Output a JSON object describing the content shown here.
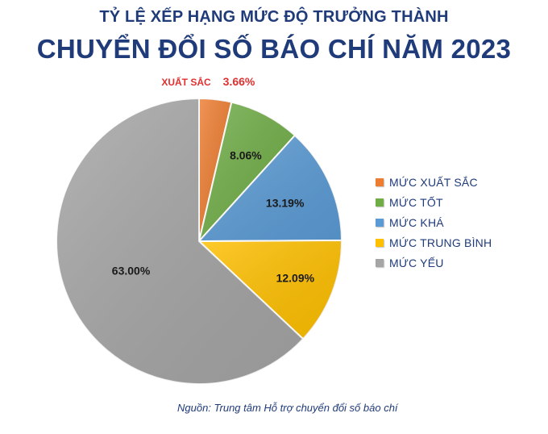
{
  "header": {
    "subtitle": "TỶ LỆ XẾP HẠNG MỨC ĐỘ TRƯỞNG THÀNH",
    "title": "CHUYỂN ĐỔI SỐ BÁO CHÍ NĂM 2023"
  },
  "chart_data": {
    "type": "pie",
    "categories": [
      "MỨC XUẤT SẮC",
      "MỨC TỐT",
      "MỨC KHÁ",
      "MỨC TRUNG BÌNH",
      "MỨC YẾU"
    ],
    "values": [
      3.66,
      8.06,
      13.19,
      12.09,
      63.0
    ],
    "data_labels": [
      "3.66%",
      "8.06%",
      "13.19%",
      "12.09%",
      "63.00%"
    ],
    "colors": [
      "#ed7d31",
      "#70ad47",
      "#5b9bd5",
      "#ffc000",
      "#a5a5a5"
    ],
    "callout_label": "XUẤT SẮC",
    "callout_color": "#e03030",
    "start_angle": "12 o'clock",
    "direction": "clockwise",
    "legend_position": "right"
  },
  "footer": {
    "source": "Nguồn: Trung tâm Hỗ trợ chuyển đổi số báo chí"
  }
}
